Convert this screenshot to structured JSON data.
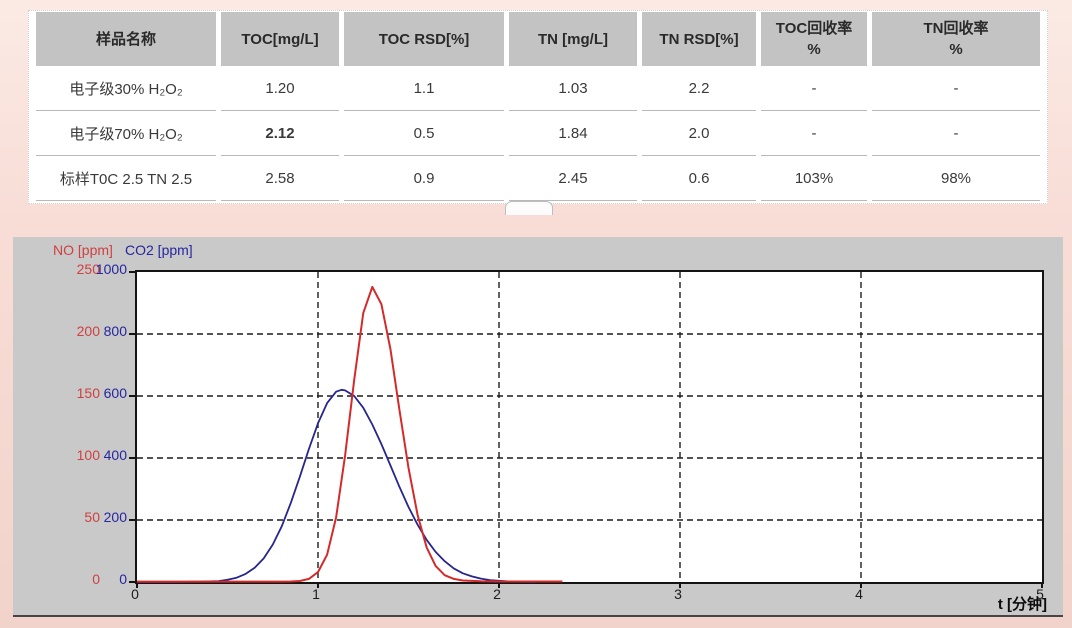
{
  "colors": {
    "page_background": "#f8ddd6",
    "panel_background": "#c9c9c9",
    "table_header_background": "#c3c3c3",
    "highlight_value": "#e80c15",
    "no_color": "#d04040",
    "co2_color": "#2626a0",
    "x_tick_color": "#1b1b1b"
  },
  "table": {
    "headers": [
      "样品名称",
      "TOC[mg/L]",
      "TOC RSD[%]",
      "TN [mg/L]",
      "TN RSD[%]",
      "TOC回收率\n%",
      "TN回收率\n%"
    ],
    "rows": [
      {
        "cells": [
          "电子级30% H₂O₂",
          "1.20",
          "1.1",
          "1.03",
          "2.2",
          "-",
          "-"
        ]
      },
      {
        "cells": [
          "电子级70% H₂O₂",
          "2.12",
          "0.5",
          "1.84",
          "2.0",
          "-",
          "-"
        ]
      },
      {
        "cells": [
          "标样T0C 2.5 TN 2.5",
          "2.58",
          "0.9",
          "2.45",
          "0.6",
          "103%",
          "98%"
        ]
      }
    ],
    "highlighted_cell": {
      "row": 1,
      "col": 1,
      "value": "2.12"
    }
  },
  "chart_data": {
    "type": "line",
    "title": "",
    "x_label": "t [分钟]",
    "x_range": [
      0,
      5
    ],
    "x_ticks": [
      0,
      1,
      2,
      3,
      4,
      5
    ],
    "grid": true,
    "legend_position": "top-left-axis-labels",
    "axes": [
      {
        "id": "no",
        "label": "NO [ppm]",
        "color": "#d04040",
        "ticks": [
          250,
          200,
          150,
          100,
          50,
          0
        ],
        "range": [
          0,
          250
        ]
      },
      {
        "id": "co2",
        "label": "CO2 [ppm]",
        "color": "#2626a0",
        "ticks": [
          1000,
          800,
          600,
          400,
          200,
          0
        ],
        "range": [
          0,
          1000
        ]
      }
    ],
    "series": [
      {
        "name": "CO2",
        "axis": "co2",
        "color": "#26268c",
        "peak_t": 1.13,
        "peak_value": 620,
        "points": [
          [
            0,
            0
          ],
          [
            0.2,
            0
          ],
          [
            0.35,
            1
          ],
          [
            0.4,
            2
          ],
          [
            0.45,
            3
          ],
          [
            0.5,
            7
          ],
          [
            0.55,
            14
          ],
          [
            0.6,
            26
          ],
          [
            0.65,
            46
          ],
          [
            0.7,
            76
          ],
          [
            0.75,
            121
          ],
          [
            0.8,
            180
          ],
          [
            0.85,
            255
          ],
          [
            0.9,
            340
          ],
          [
            0.95,
            429
          ],
          [
            1.0,
            512
          ],
          [
            1.05,
            577
          ],
          [
            1.1,
            614
          ],
          [
            1.13,
            620
          ],
          [
            1.15,
            618
          ],
          [
            1.2,
            600
          ],
          [
            1.25,
            562
          ],
          [
            1.3,
            508
          ],
          [
            1.35,
            445
          ],
          [
            1.4,
            376
          ],
          [
            1.45,
            307
          ],
          [
            1.5,
            242
          ],
          [
            1.55,
            185
          ],
          [
            1.6,
            136
          ],
          [
            1.65,
            97
          ],
          [
            1.7,
            67
          ],
          [
            1.75,
            44
          ],
          [
            1.8,
            28
          ],
          [
            1.85,
            18
          ],
          [
            1.9,
            11
          ],
          [
            1.95,
            6
          ],
          [
            2.0,
            4
          ],
          [
            2.05,
            2
          ],
          [
            2.1,
            1
          ],
          [
            2.2,
            0
          ]
        ]
      },
      {
        "name": "NO",
        "axis": "no",
        "color": "#d42a2a",
        "peak_t": 1.3,
        "peak_value": 238,
        "points": [
          [
            0,
            0.3
          ],
          [
            0.8,
            0.3
          ],
          [
            0.85,
            0.4
          ],
          [
            0.9,
            0.8
          ],
          [
            0.95,
            2.5
          ],
          [
            1.0,
            8
          ],
          [
            1.05,
            22
          ],
          [
            1.1,
            52
          ],
          [
            1.15,
            102
          ],
          [
            1.2,
            163
          ],
          [
            1.25,
            217
          ],
          [
            1.3,
            238
          ],
          [
            1.35,
            224
          ],
          [
            1.4,
            188
          ],
          [
            1.45,
            139
          ],
          [
            1.5,
            92
          ],
          [
            1.55,
            54
          ],
          [
            1.6,
            28
          ],
          [
            1.65,
            13
          ],
          [
            1.7,
            5.5
          ],
          [
            1.75,
            2.5
          ],
          [
            1.8,
            1.2
          ],
          [
            1.9,
            0.6
          ],
          [
            2.0,
            0.4
          ],
          [
            2.35,
            0.4
          ]
        ]
      }
    ]
  }
}
